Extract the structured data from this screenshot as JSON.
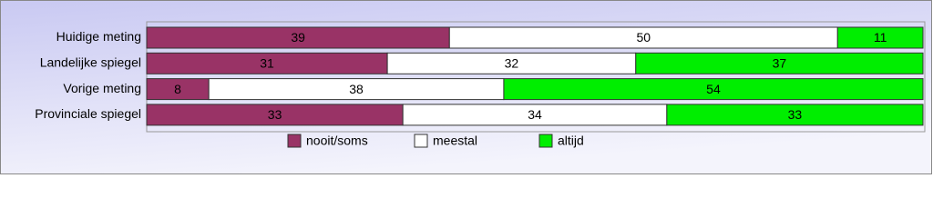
{
  "chart_data": {
    "type": "bar",
    "horizontal": true,
    "stacked": true,
    "categories": [
      "Huidige meting",
      "Landelijke spiegel",
      "Vorige meting",
      "Provinciale spiegel"
    ],
    "series": [
      {
        "name": "nooit/soms",
        "color": "#993366",
        "values": [
          39,
          31,
          8,
          33
        ]
      },
      {
        "name": "meestal",
        "color": "#ffffff",
        "values": [
          50,
          32,
          38,
          34
        ]
      },
      {
        "name": "altijd",
        "color": "#00ee00",
        "values": [
          11,
          37,
          54,
          33
        ]
      }
    ],
    "xlim": [
      0,
      100
    ]
  }
}
